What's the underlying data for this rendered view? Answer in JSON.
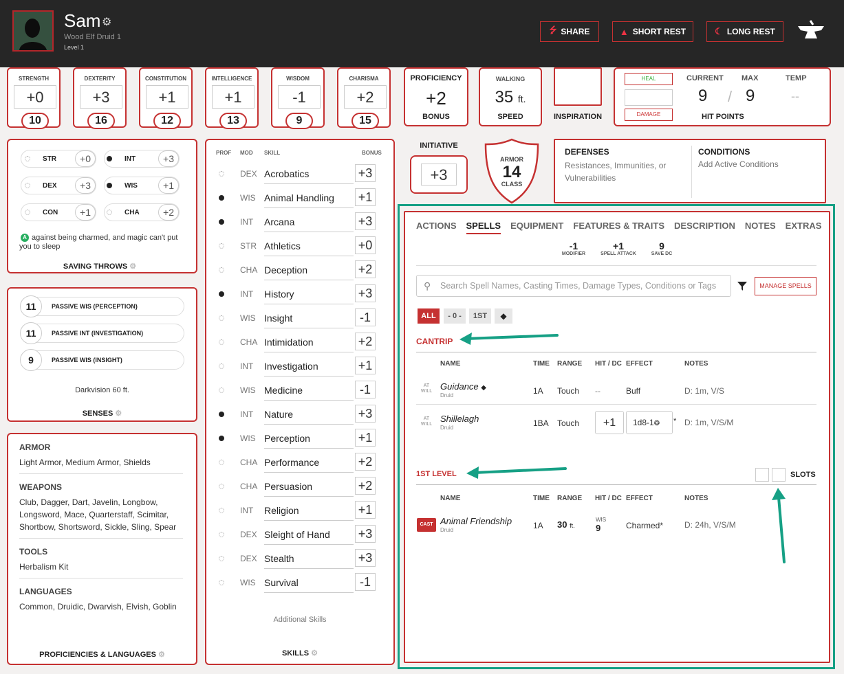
{
  "character": {
    "name": "Sam",
    "race_class": "Wood Elf  Druid 1",
    "level": "Level 1"
  },
  "header_buttons": {
    "share": "SHARE",
    "short_rest": "SHORT REST",
    "long_rest": "LONG REST"
  },
  "abilities": [
    {
      "label": "STRENGTH",
      "mod": "+0",
      "score": "10"
    },
    {
      "label": "DEXTERITY",
      "mod": "+3",
      "score": "16"
    },
    {
      "label": "CONSTITUTION",
      "mod": "+1",
      "score": "12"
    },
    {
      "label": "INTELLIGENCE",
      "mod": "+1",
      "score": "13"
    },
    {
      "label": "WISDOM",
      "mod": "-1",
      "score": "9"
    },
    {
      "label": "CHARISMA",
      "mod": "+2",
      "score": "15"
    }
  ],
  "proficiency": {
    "title": "PROFICIENCY",
    "value": "+2",
    "sub": "BONUS"
  },
  "speed": {
    "title": "WALKING",
    "value": "35",
    "unit": "ft.",
    "sub": "SPEED"
  },
  "inspiration": {
    "label": "INSPIRATION"
  },
  "hp": {
    "heal": "HEAL",
    "damage": "DAMAGE",
    "current_label": "CURRENT",
    "max_label": "MAX",
    "temp_label": "TEMP",
    "current": "9",
    "max": "9",
    "temp": "--",
    "slash": "/",
    "title": "HIT POINTS"
  },
  "initiative": {
    "title": "INITIATIVE",
    "value": "+3"
  },
  "armor": {
    "top": "ARMOR",
    "value": "14",
    "bottom": "CLASS"
  },
  "defenses": {
    "title": "DEFENSES",
    "text": "Resistances, Immunities, or Vulnerabilities"
  },
  "conditions": {
    "title": "CONDITIONS",
    "text": "Add Active Conditions"
  },
  "saving_throws": {
    "rows": [
      [
        {
          "name": "STR",
          "mod": "+0",
          "prof": false
        },
        {
          "name": "INT",
          "mod": "+3",
          "prof": true
        }
      ],
      [
        {
          "name": "DEX",
          "mod": "+3",
          "prof": false
        },
        {
          "name": "WIS",
          "mod": "+1",
          "prof": true
        }
      ],
      [
        {
          "name": "CON",
          "mod": "+1",
          "prof": false
        },
        {
          "name": "CHA",
          "mod": "+2",
          "prof": false
        }
      ]
    ],
    "note_icon": "A",
    "note": "against being charmed, and magic can't put you to sleep",
    "title": "SAVING THROWS"
  },
  "senses": {
    "items": [
      {
        "value": "11",
        "label": "PASSIVE WIS (PERCEPTION)"
      },
      {
        "value": "11",
        "label": "PASSIVE INT (INVESTIGATION)"
      },
      {
        "value": "9",
        "label": "PASSIVE WIS (INSIGHT)"
      }
    ],
    "darkvision": "Darkvision 60 ft.",
    "title": "SENSES"
  },
  "proficiencies": {
    "sections": [
      {
        "title": "ARMOR",
        "text": "Light Armor, Medium Armor, Shields"
      },
      {
        "title": "WEAPONS",
        "text": "Club, Dagger, Dart, Javelin, Longbow, Longsword, Mace, Quarterstaff, Scimitar, Shortbow, Shortsword, Sickle, Sling, Spear"
      },
      {
        "title": "TOOLS",
        "text": "Herbalism Kit"
      },
      {
        "title": "LANGUAGES",
        "text": "Common, Druidic, Dwarvish, Elvish, Goblin"
      }
    ],
    "title": "PROFICIENCIES & LANGUAGES"
  },
  "skills": {
    "headers": {
      "prof": "PROF",
      "mod": "MOD",
      "skill": "SKILL",
      "bonus": "BONUS"
    },
    "items": [
      {
        "prof": false,
        "mod": "DEX",
        "name": "Acrobatics",
        "bonus": "+3"
      },
      {
        "prof": true,
        "mod": "WIS",
        "name": "Animal Handling",
        "bonus": "+1"
      },
      {
        "prof": true,
        "mod": "INT",
        "name": "Arcana",
        "bonus": "+3"
      },
      {
        "prof": false,
        "mod": "STR",
        "name": "Athletics",
        "bonus": "+0"
      },
      {
        "prof": false,
        "mod": "CHA",
        "name": "Deception",
        "bonus": "+2"
      },
      {
        "prof": true,
        "mod": "INT",
        "name": "History",
        "bonus": "+3"
      },
      {
        "prof": false,
        "mod": "WIS",
        "name": "Insight",
        "bonus": "-1"
      },
      {
        "prof": false,
        "mod": "CHA",
        "name": "Intimidation",
        "bonus": "+2"
      },
      {
        "prof": false,
        "mod": "INT",
        "name": "Investigation",
        "bonus": "+1"
      },
      {
        "prof": false,
        "mod": "WIS",
        "name": "Medicine",
        "bonus": "-1"
      },
      {
        "prof": true,
        "mod": "INT",
        "name": "Nature",
        "bonus": "+3"
      },
      {
        "prof": true,
        "mod": "WIS",
        "name": "Perception",
        "bonus": "+1"
      },
      {
        "prof": false,
        "mod": "CHA",
        "name": "Performance",
        "bonus": "+2"
      },
      {
        "prof": false,
        "mod": "CHA",
        "name": "Persuasion",
        "bonus": "+2"
      },
      {
        "prof": false,
        "mod": "INT",
        "name": "Religion",
        "bonus": "+1"
      },
      {
        "prof": false,
        "mod": "DEX",
        "name": "Sleight of Hand",
        "bonus": "+3"
      },
      {
        "prof": false,
        "mod": "DEX",
        "name": "Stealth",
        "bonus": "+3"
      },
      {
        "prof": false,
        "mod": "WIS",
        "name": "Survival",
        "bonus": "-1"
      }
    ],
    "additional": "Additional Skills",
    "title": "SKILLS"
  },
  "tabs": [
    "ACTIONS",
    "SPELLS",
    "EQUIPMENT",
    "FEATURES & TRAITS",
    "DESCRIPTION",
    "NOTES",
    "EXTRAS"
  ],
  "spell_stats": [
    {
      "value": "-1",
      "label": "MODIFIER"
    },
    {
      "value": "+1",
      "label": "SPELL ATTACK"
    },
    {
      "value": "9",
      "label": "SAVE DC"
    }
  ],
  "spell_search": {
    "placeholder": "Search Spell Names, Casting Times, Damage Types, Conditions or Tags",
    "manage": "MANAGE SPELLS"
  },
  "filters": [
    "ALL",
    "- 0 -",
    "1ST"
  ],
  "spell_columns": {
    "name": "NAME",
    "time": "TIME",
    "range": "RANGE",
    "hit": "HIT / DC",
    "effect": "EFFECT",
    "notes": "NOTES"
  },
  "cantrip": {
    "title": "CANTRIP",
    "spells": [
      {
        "tag": "AT WILL",
        "name": "Guidance",
        "source": "Druid",
        "time": "1A",
        "range": "Touch",
        "hit": "--",
        "effect": "Buff",
        "notes": "D: 1m, V/S"
      },
      {
        "tag": "AT WILL",
        "name": "Shillelagh",
        "source": "Druid",
        "time": "1BA",
        "range": "Touch",
        "hit": "+1",
        "effect": "1d8-1",
        "notes": "D: 1m, V/S/M"
      }
    ]
  },
  "level1": {
    "title": "1ST LEVEL",
    "slots": "SLOTS",
    "spells": [
      {
        "tag": "CAST",
        "name": "Animal Friendship",
        "source": "Druid",
        "time": "1A",
        "range": "30",
        "range_unit": "ft.",
        "hit_label": "WIS",
        "hit": "9",
        "effect": "Charmed*",
        "notes": "D: 24h, V/S/M"
      }
    ]
  },
  "colors": {
    "accent": "#c53131",
    "highlight": "#16a085",
    "header_bg": "#262626"
  }
}
